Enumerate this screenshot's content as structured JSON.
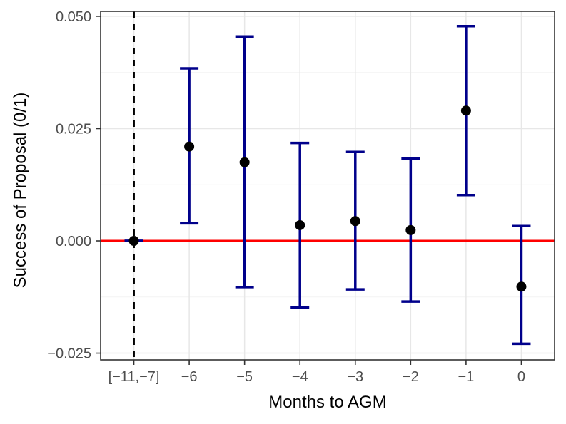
{
  "chart_data": {
    "type": "scatter",
    "subtype": "coefficient-plot-with-error-bars",
    "title": "",
    "xlabel": "Months to AGM",
    "ylabel": "Success of Proposal (0/1)",
    "categories": [
      "[−11,−7]",
      "−6",
      "−5",
      "−4",
      "−3",
      "−2",
      "−1",
      "0"
    ],
    "points": [
      {
        "x": "[−11,−7]",
        "estimate": 0.0,
        "ci_low": 0.0,
        "ci_high": 0.0,
        "reference": true
      },
      {
        "x": "−6",
        "estimate": 0.021,
        "ci_low": 0.0039,
        "ci_high": 0.0384,
        "reference": false
      },
      {
        "x": "−5",
        "estimate": 0.0175,
        "ci_low": -0.0103,
        "ci_high": 0.0455,
        "reference": false
      },
      {
        "x": "−4",
        "estimate": 0.0035,
        "ci_low": -0.0148,
        "ci_high": 0.0218,
        "reference": false
      },
      {
        "x": "−3",
        "estimate": 0.0044,
        "ci_low": -0.0108,
        "ci_high": 0.0198,
        "reference": false
      },
      {
        "x": "−2",
        "estimate": 0.0024,
        "ci_low": -0.0135,
        "ci_high": 0.0183,
        "reference": false
      },
      {
        "x": "−1",
        "estimate": 0.029,
        "ci_low": 0.0102,
        "ci_high": 0.0478,
        "reference": false
      },
      {
        "x": "0",
        "estimate": -0.0102,
        "ci_low": -0.0229,
        "ci_high": 0.0033,
        "reference": false
      }
    ],
    "y_ticks": [
      {
        "value": -0.025,
        "label": "−0.025"
      },
      {
        "value": 0.0,
        "label": "0.000"
      },
      {
        "value": 0.025,
        "label": "0.025"
      },
      {
        "value": 0.05,
        "label": "0.050"
      }
    ],
    "ylim": [
      -0.0265,
      0.0511
    ],
    "grid": "major-and-minor-horizontal, major-vertical",
    "legend": false,
    "annotations": {
      "hline": {
        "y": 0,
        "color": "#FF0000",
        "style": "solid"
      },
      "vline": {
        "x": "[−11,−7]",
        "color": "#000000",
        "style": "dashed"
      }
    },
    "colors": {
      "errorbar": "#00008B",
      "point": "#000000",
      "reference_line": "#FF0000",
      "dashed_line": "#000000",
      "grid_major": "#E7E7E7",
      "grid_minor": "#F4F4F4",
      "panel_border": "#333333",
      "tick": "#333333",
      "tick_label": "#4D4D4D",
      "axis_title": "#000000",
      "background": "#FFFFFF"
    }
  }
}
